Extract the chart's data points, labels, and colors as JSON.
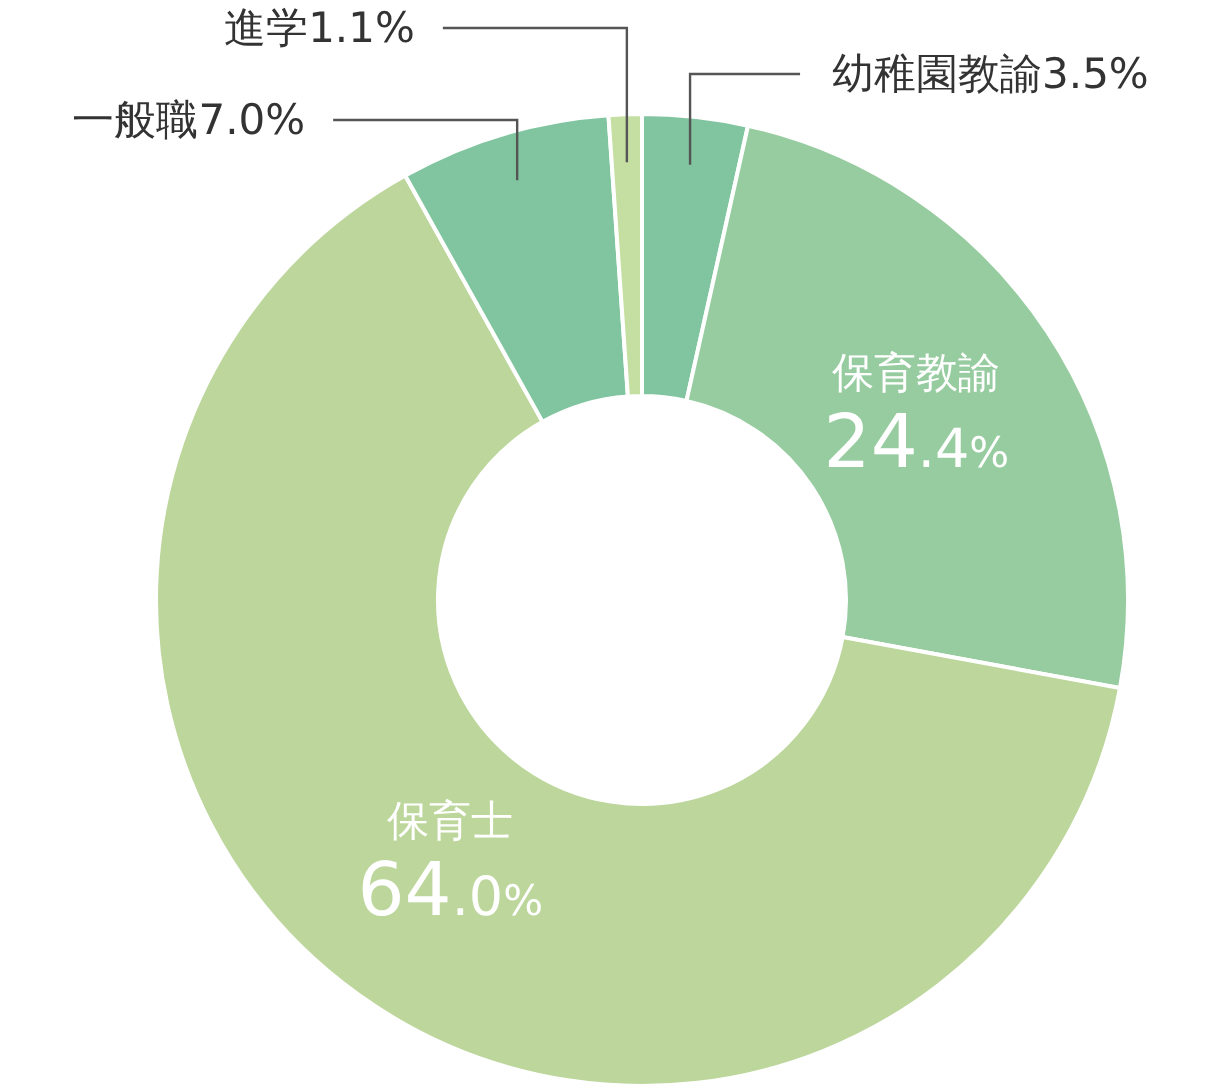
{
  "chart_data": {
    "type": "donut",
    "categories": [
      "幼稚園教諭",
      "保育教諭",
      "保育士",
      "一般職",
      "進学"
    ],
    "values": [
      3.5,
      24.4,
      64.0,
      7.0,
      1.1
    ],
    "value_labels": [
      "3.5%",
      "24.4%",
      "64.0%",
      "7.0%",
      "1.1%"
    ],
    "colors": [
      "#80c5a0",
      "#96cc9f",
      "#bcd69b",
      "#80c5a0",
      "#c5dfa3"
    ]
  }
}
